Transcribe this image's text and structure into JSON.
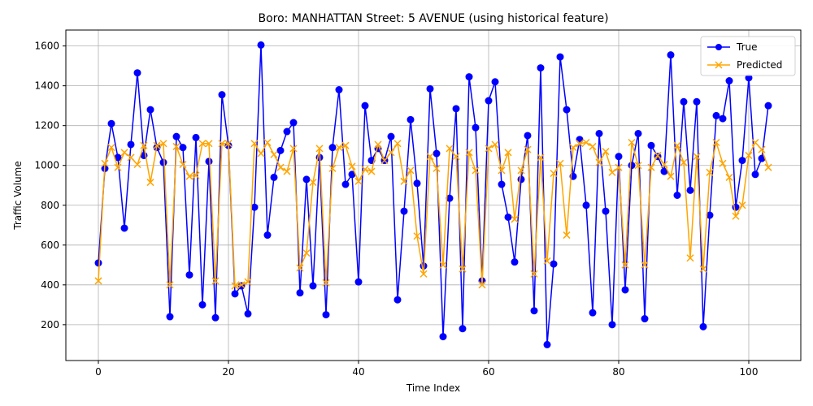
{
  "chart_data": {
    "type": "line",
    "title": "Boro: MANHATTAN Street: 5 AVENUE (using historical feature)",
    "xlabel": "Time Index",
    "ylabel": "Traffic Volume",
    "xlim": [
      -5,
      108
    ],
    "ylim": [
      20,
      1680
    ],
    "xticks": [
      0,
      20,
      40,
      60,
      80,
      100
    ],
    "yticks": [
      200,
      400,
      600,
      800,
      1000,
      1200,
      1400,
      1600
    ],
    "grid": true,
    "legend_position": "top-right",
    "series": [
      {
        "name": "True",
        "color": "#0000ff",
        "marker": "circle",
        "values": [
          510,
          985,
          1210,
          1040,
          685,
          1105,
          1465,
          1050,
          1280,
          1090,
          1015,
          240,
          1145,
          1090,
          450,
          1140,
          300,
          1020,
          235,
          1355,
          1100,
          355,
          395,
          255,
          790,
          1605,
          650,
          940,
          1075,
          1170,
          1215,
          360,
          930,
          395,
          1040,
          250,
          1090,
          1380,
          905,
          955,
          415,
          1300,
          1025,
          1085,
          1025,
          1145,
          325,
          770,
          1230,
          910,
          495,
          1385,
          1060,
          140,
          835,
          1285,
          180,
          1445,
          1190,
          420,
          1325,
          1420,
          905,
          740,
          515,
          930,
          1150,
          270,
          1490,
          100,
          505,
          1545,
          1280,
          945,
          1130,
          800,
          260,
          1160,
          770,
          200,
          1045,
          375,
          1000,
          1160,
          230,
          1100,
          1045,
          970,
          1555,
          850,
          1320,
          875,
          1320,
          190,
          750,
          1250,
          1235,
          1425,
          790,
          1025,
          1440,
          955,
          1035,
          1300
        ]
      },
      {
        "name": "Predicted",
        "color": "#ffa500",
        "marker": "x",
        "values": [
          420,
          1010,
          1090,
          990,
          1065,
          1040,
          1005,
          1100,
          915,
          1100,
          1110,
          400,
          1095,
          1005,
          945,
          950,
          1110,
          1110,
          420,
          1110,
          1110,
          395,
          400,
          415,
          1110,
          1060,
          1115,
          1055,
          990,
          970,
          1085,
          485,
          560,
          915,
          1085,
          410,
          985,
          1090,
          1100,
          995,
          920,
          980,
          970,
          1105,
          1025,
          1065,
          1110,
          920,
          975,
          645,
          455,
          1045,
          985,
          500,
          1085,
          1045,
          480,
          1065,
          975,
          400,
          1085,
          1105,
          975,
          1065,
          730,
          975,
          1080,
          455,
          1040,
          520,
          960,
          1010,
          650,
          1090,
          1110,
          1115,
          1095,
          1015,
          1070,
          965,
          990,
          500,
          1115,
          1000,
          500,
          990,
          1050,
          1005,
          945,
          1100,
          1015,
          535,
          1045,
          480,
          965,
          1115,
          1010,
          940,
          745,
          800,
          1050,
          1115,
          1080,
          990
        ]
      }
    ]
  }
}
